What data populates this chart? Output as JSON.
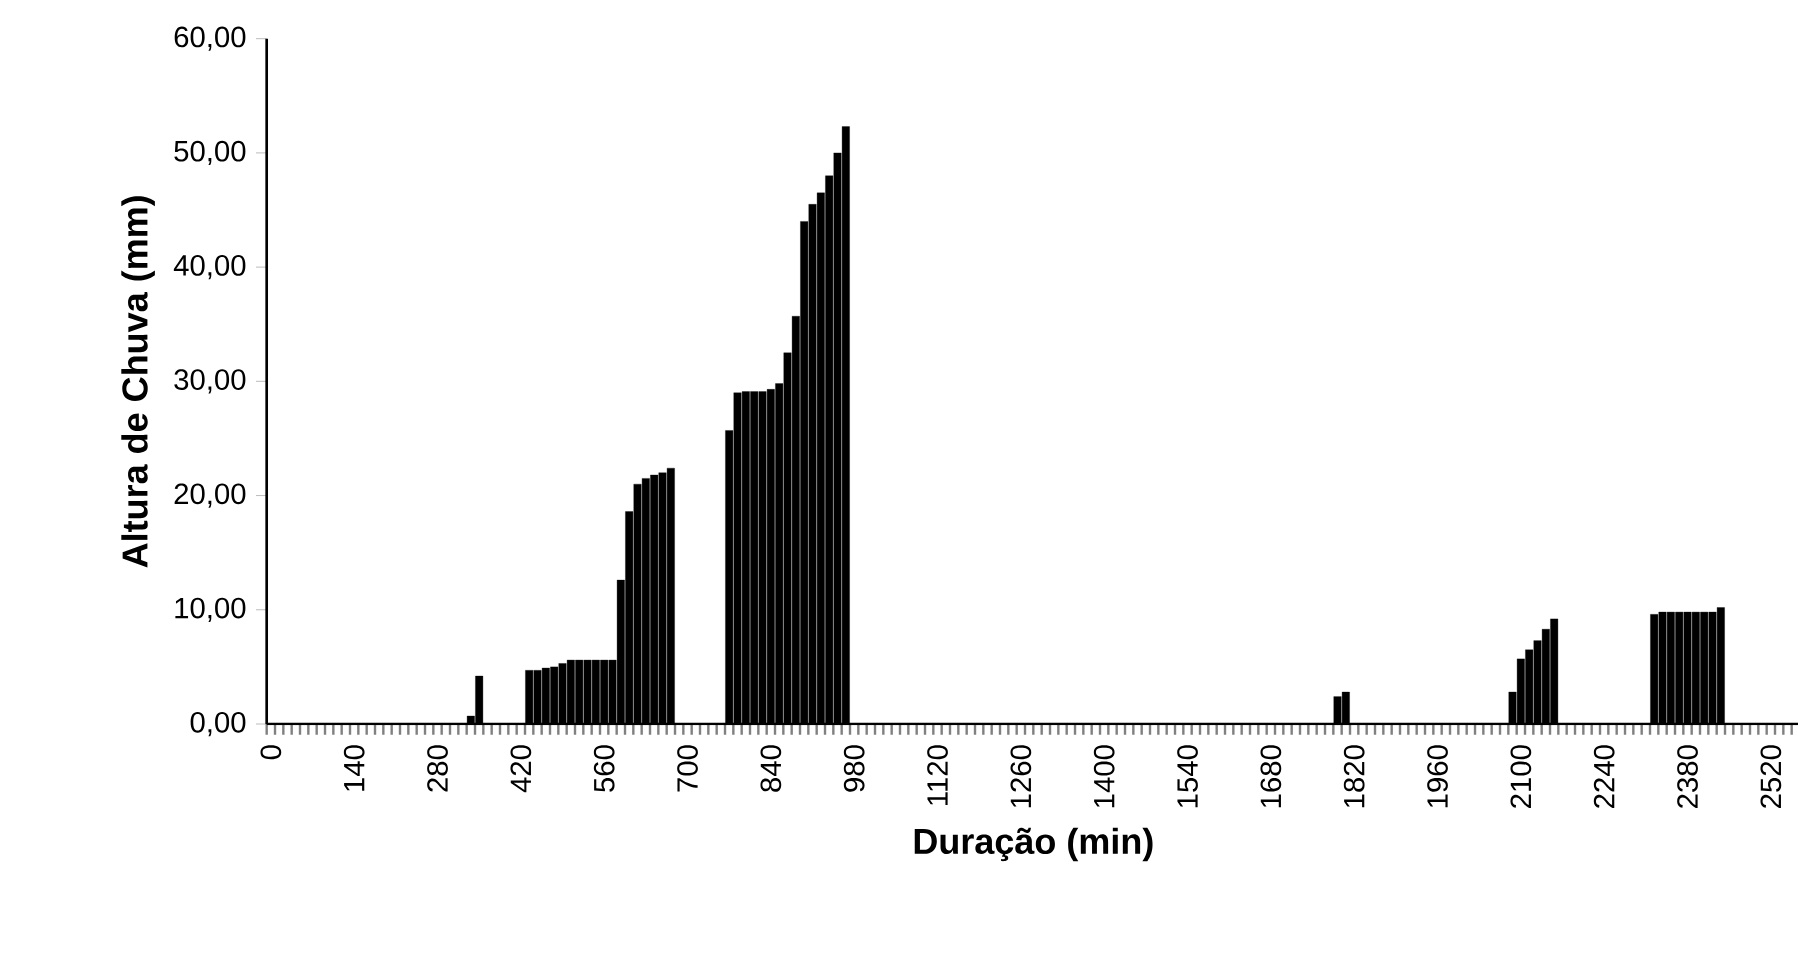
{
  "chart_data": {
    "type": "bar",
    "xlabel": "Duração (min)",
    "ylabel": "Altura de Chuva (mm)",
    "color": "#000000",
    "categories": [
      "0",
      null,
      null,
      null,
      null,
      null,
      null,
      null,
      null,
      null,
      "140",
      null,
      null,
      null,
      null,
      null,
      null,
      null,
      null,
      null,
      "280",
      null,
      null,
      null,
      null,
      null,
      null,
      null,
      null,
      null,
      "420",
      null,
      null,
      null,
      null,
      null,
      null,
      null,
      null,
      null,
      "560",
      null,
      null,
      null,
      null,
      null,
      null,
      null,
      null,
      null,
      "700",
      null,
      null,
      null,
      null,
      null,
      null,
      null,
      null,
      null,
      "840",
      null,
      null,
      null,
      null,
      null,
      null,
      null,
      null,
      null,
      "980",
      null,
      null,
      null,
      null,
      null,
      null,
      null,
      null,
      null,
      "1120",
      null,
      null,
      null,
      null,
      null,
      null,
      null,
      null,
      null,
      "1260",
      null,
      null,
      null,
      null,
      null,
      null,
      null,
      null,
      null,
      "1400",
      null,
      null,
      null,
      null,
      null,
      null,
      null,
      null,
      null,
      "1540",
      null,
      null,
      null,
      null,
      null,
      null,
      null,
      null,
      null,
      "1680",
      null,
      null,
      null,
      null,
      null,
      null,
      null,
      null,
      null,
      "1820",
      null,
      null,
      null,
      null,
      null,
      null,
      null,
      null,
      null,
      "1960",
      null,
      null,
      null,
      null,
      null,
      null,
      null,
      null,
      null,
      "2100",
      null,
      null,
      null,
      null,
      null,
      null,
      null,
      null,
      null,
      "2240",
      null,
      null,
      null,
      null,
      null,
      null,
      null,
      null,
      null,
      "2380",
      null,
      null,
      null,
      null,
      null,
      null,
      null,
      null,
      null,
      "2520",
      null,
      null,
      null
    ],
    "values": [
      0,
      0,
      0,
      0,
      0,
      0,
      0,
      0,
      0,
      0,
      0,
      0,
      0,
      0,
      0,
      0,
      0,
      0,
      0,
      0,
      0,
      0,
      0,
      0,
      0.7,
      4.2,
      0,
      0,
      0,
      0,
      0,
      4.7,
      4.7,
      4.9,
      5.0,
      5.3,
      5.6,
      5.6,
      5.6,
      5.6,
      5.6,
      5.6,
      12.6,
      18.6,
      21.0,
      21.5,
      21.8,
      22.0,
      22.4,
      0,
      0,
      0,
      0,
      0,
      0,
      25.7,
      29.0,
      29.1,
      29.1,
      29.1,
      29.3,
      29.8,
      32.5,
      35.7,
      44.0,
      45.5,
      46.5,
      48.0,
      50.0,
      52.3,
      0,
      0,
      0,
      0,
      0,
      0,
      0,
      0,
      0,
      0,
      0,
      0,
      0,
      0,
      0,
      0,
      0,
      0,
      0,
      0,
      0,
      0,
      0,
      0,
      0,
      0,
      0,
      0,
      0,
      0,
      0,
      0,
      0,
      0,
      0,
      0,
      0,
      0,
      0,
      0,
      0,
      0,
      0,
      0,
      0,
      0,
      0,
      0,
      0,
      0,
      0,
      0,
      0,
      0,
      0,
      0,
      0,
      0,
      2.4,
      2.8,
      0,
      0,
      0,
      0,
      0,
      0,
      0,
      0,
      0,
      0,
      0,
      0,
      0,
      0,
      0,
      0,
      0,
      0,
      0,
      2.8,
      5.7,
      6.5,
      7.3,
      8.3,
      9.2,
      0,
      0,
      0,
      0,
      0,
      0,
      0,
      0,
      0,
      0,
      0,
      9.6,
      9.8,
      9.8,
      9.8,
      9.8,
      9.8,
      9.8,
      9.8,
      10.2,
      0,
      0,
      0,
      0,
      0,
      0,
      0,
      0,
      0
    ],
    "ylim": [
      0,
      60
    ],
    "yticks": [
      {
        "value": 0,
        "label": "0,00"
      },
      {
        "value": 10,
        "label": "10,00"
      },
      {
        "value": 20,
        "label": "20,00"
      },
      {
        "value": 30,
        "label": "30,00"
      },
      {
        "value": 40,
        "label": "40,00"
      },
      {
        "value": 50,
        "label": "50,00"
      },
      {
        "value": 60,
        "label": "60,00"
      }
    ]
  }
}
